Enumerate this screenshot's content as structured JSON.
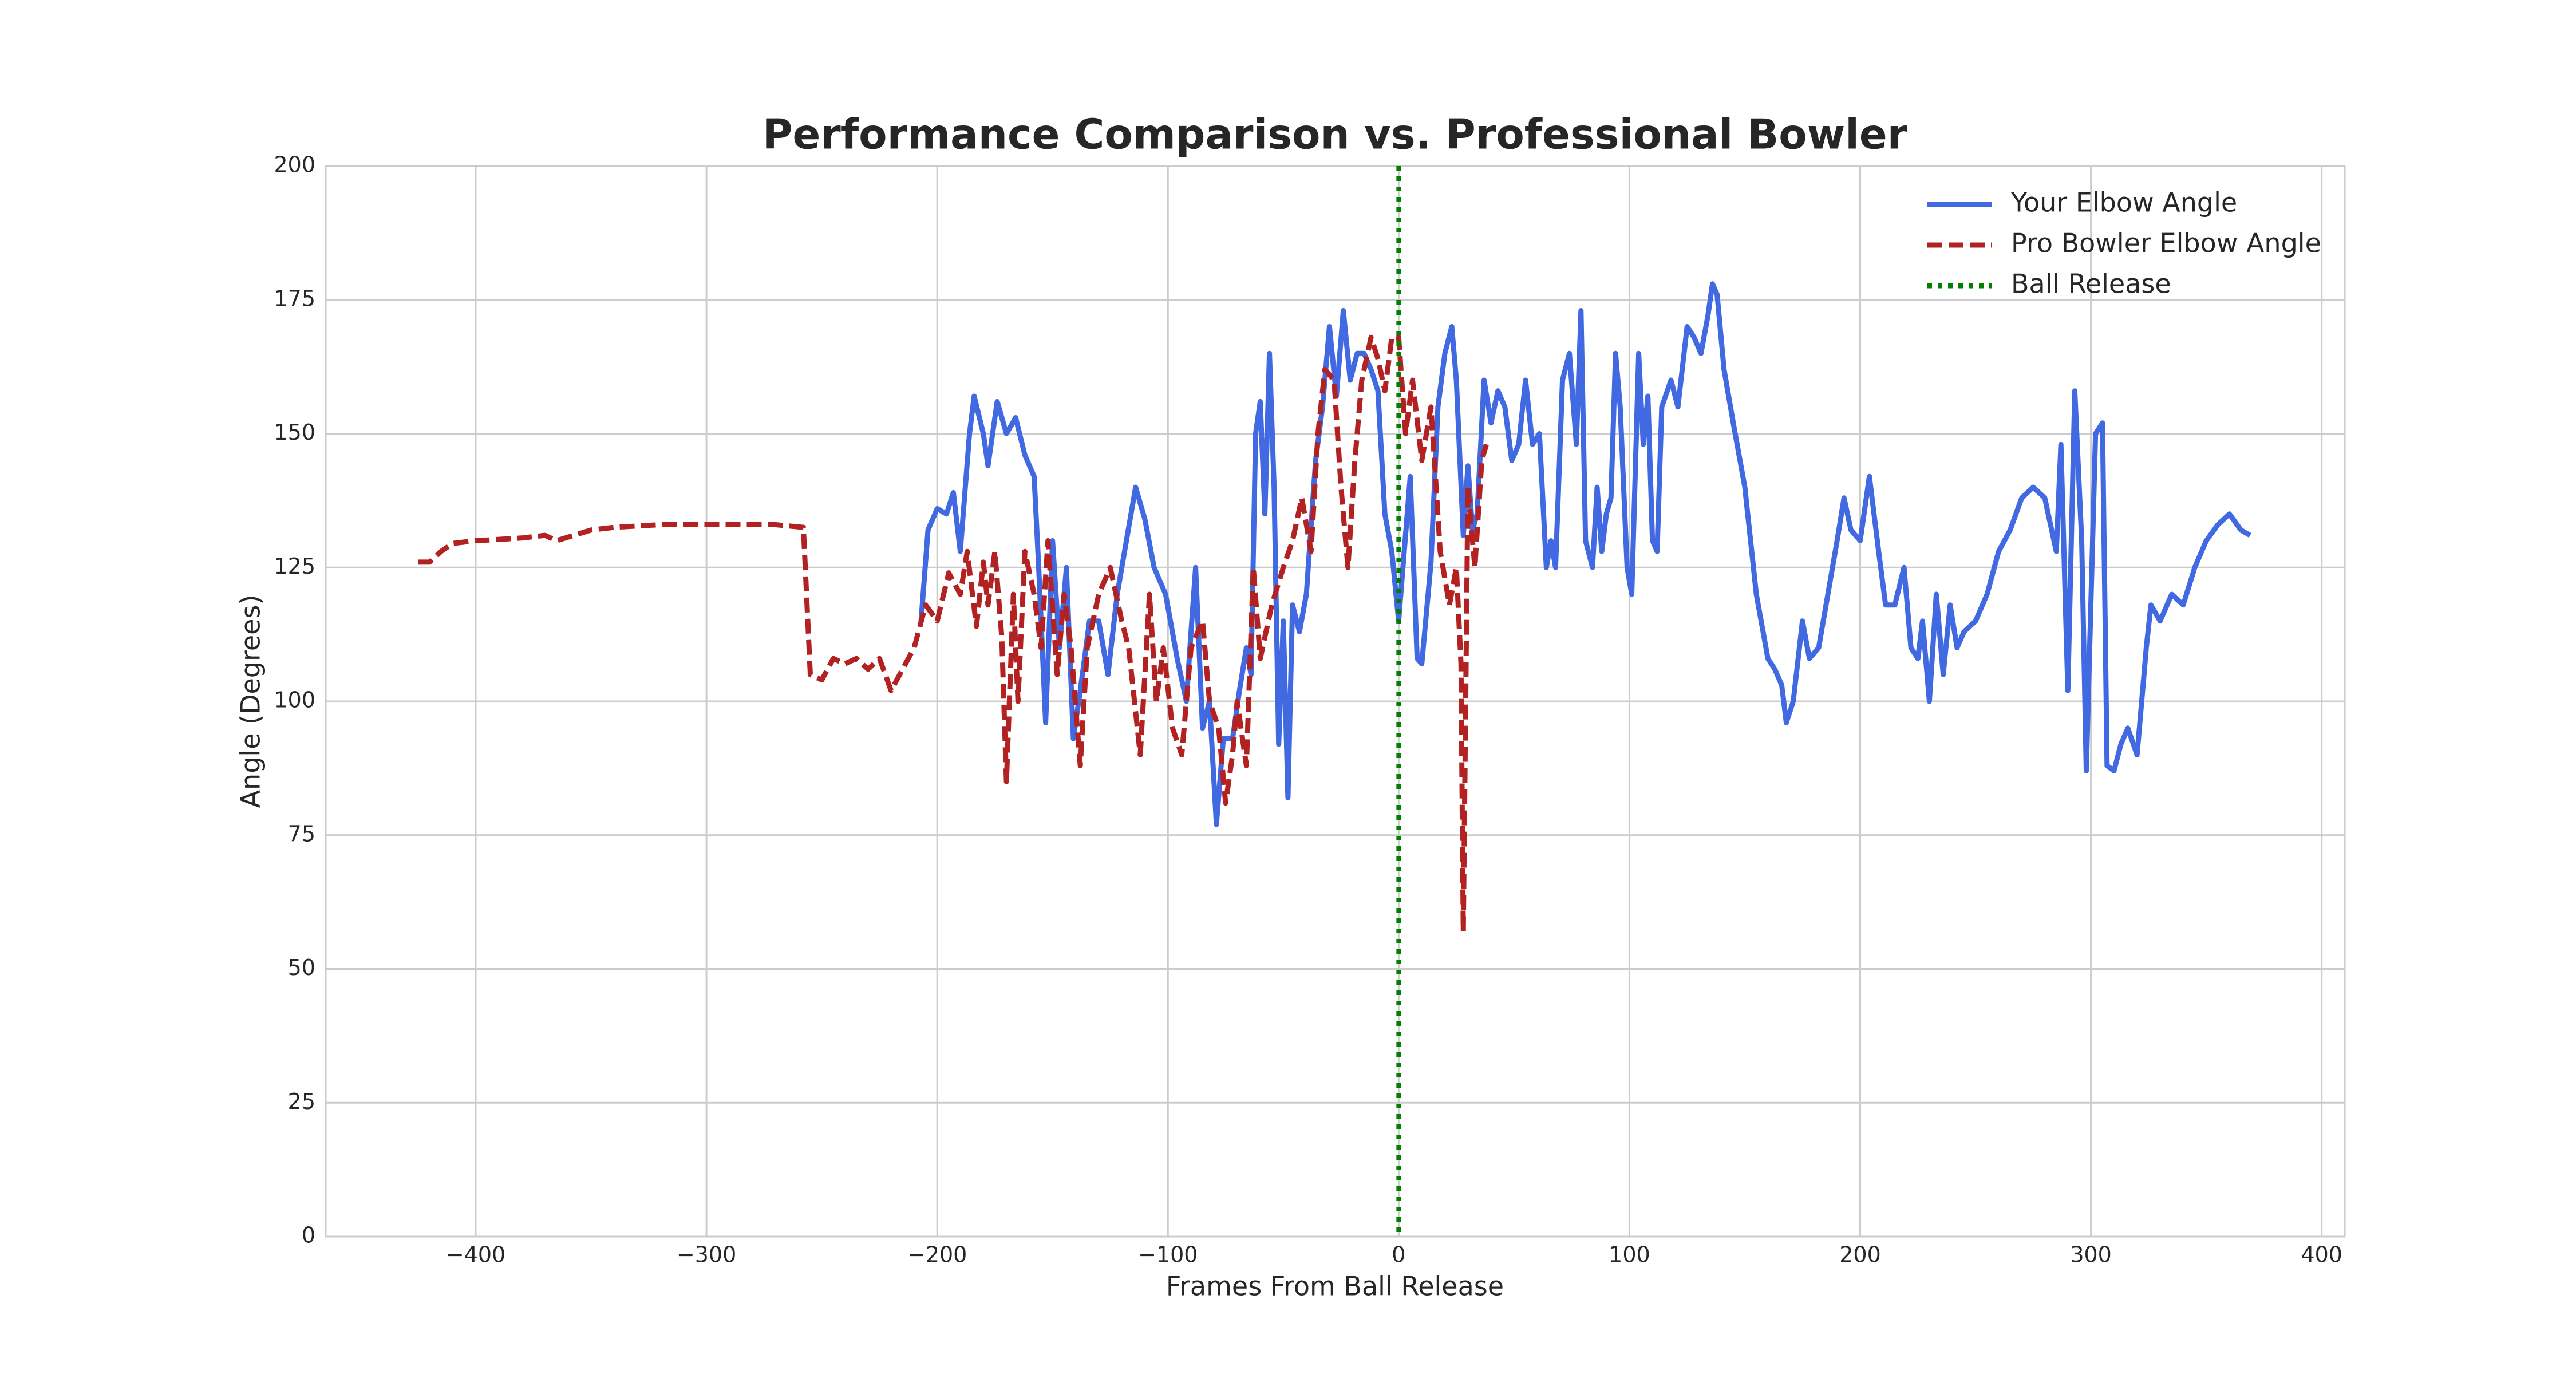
{
  "chart_data": {
    "type": "line",
    "title": "Performance Comparison vs. Professional Bowler",
    "x_label": "Frames From Ball Release",
    "y_label": "Angle (Degrees)",
    "xlim": [
      -465,
      410
    ],
    "ylim": [
      0,
      200
    ],
    "xticks": [
      {
        "value": -400,
        "label": "−400"
      },
      {
        "value": -300,
        "label": "−300"
      },
      {
        "value": -200,
        "label": "−200"
      },
      {
        "value": -100,
        "label": "−100"
      },
      0,
      100,
      200,
      300,
      400
    ],
    "yticks": [
      0,
      25,
      50,
      75,
      100,
      125,
      150,
      175,
      200
    ],
    "grid": true,
    "legend": "upper right",
    "series": [
      {
        "name": "Your Elbow Angle",
        "color": "#4169e1",
        "dash": "solid",
        "x": [
          -207,
          -204,
          -200,
          -196,
          -193,
          -190,
          -186,
          -184,
          -180,
          -178,
          -174,
          -170,
          -166,
          -162,
          -158,
          -156,
          -153,
          -150,
          -147,
          -144,
          -141,
          -138,
          -134,
          -130,
          -126,
          -122,
          -118,
          -114,
          -110,
          -106,
          -101,
          -96,
          -92,
          -90,
          -88,
          -85,
          -82,
          -79,
          -76,
          -72,
          -69,
          -66,
          -64,
          -62,
          -60,
          -58,
          -56,
          -54,
          -52,
          -50,
          -48,
          -46,
          -43,
          -40,
          -36,
          -33,
          -30,
          -27,
          -24,
          -21,
          -18,
          -15,
          -12,
          -9,
          -6,
          -3,
          0,
          5,
          8,
          10,
          14,
          17,
          20,
          23,
          25,
          28,
          30,
          32,
          34,
          37,
          40,
          43,
          46,
          49,
          52,
          55,
          58,
          61,
          64,
          66,
          68,
          71,
          74,
          77,
          79,
          81,
          84,
          86,
          88,
          90,
          92,
          94,
          96,
          99,
          101,
          104,
          106,
          108,
          110,
          112,
          114,
          118,
          121,
          125,
          128,
          131,
          134,
          136,
          138,
          141,
          145,
          150,
          155,
          160,
          163,
          166,
          168,
          171,
          175,
          178,
          182,
          186,
          190,
          193,
          196,
          200,
          204,
          208,
          211,
          215,
          219,
          222,
          225,
          227,
          230,
          233,
          236,
          239,
          242,
          245,
          250,
          255,
          260,
          265,
          270,
          275,
          280,
          285,
          287,
          290,
          293,
          296,
          298,
          302,
          305,
          307,
          310,
          313,
          316,
          320,
          322,
          324,
          326,
          330,
          335,
          340,
          345,
          350,
          355,
          360,
          365,
          369
        ],
        "values": [
          115,
          132,
          136,
          135,
          139,
          128,
          150,
          157,
          150,
          144,
          156,
          150,
          153,
          146,
          142,
          125,
          96,
          130,
          110,
          125,
          93,
          102,
          115,
          115,
          105,
          120,
          130,
          140,
          134,
          125,
          120,
          108,
          100,
          113,
          125,
          95,
          100,
          77,
          93,
          93,
          102,
          110,
          105,
          150,
          156,
          135,
          165,
          140,
          92,
          115,
          82,
          118,
          113,
          120,
          145,
          155,
          170,
          157,
          173,
          160,
          165,
          165,
          162,
          158,
          135,
          128,
          115,
          142,
          108,
          107,
          126,
          155,
          165,
          170,
          160,
          131,
          144,
          132,
          135,
          160,
          152,
          158,
          155,
          145,
          148,
          160,
          148,
          150,
          125,
          130,
          125,
          160,
          165,
          148,
          173,
          130,
          125,
          140,
          128,
          135,
          138,
          165,
          155,
          125,
          120,
          165,
          148,
          157,
          130,
          128,
          155,
          160,
          155,
          170,
          168,
          165,
          172,
          178,
          176,
          162,
          152,
          140,
          120,
          108,
          106,
          103,
          96,
          100,
          115,
          108,
          110,
          120,
          130,
          138,
          132,
          130,
          142,
          128,
          118,
          118,
          125,
          110,
          108,
          115,
          100,
          120,
          105,
          118,
          110,
          113,
          115,
          120,
          128,
          132,
          138,
          140,
          138,
          128,
          148,
          102,
          158,
          130,
          87,
          150,
          152,
          88,
          87,
          92,
          95,
          90,
          100,
          110,
          118,
          115,
          120,
          118,
          125,
          130,
          133,
          135,
          132,
          131
        ]
      },
      {
        "name": "Pro Bowler Elbow Angle",
        "color": "#b22222",
        "dash": "dashed",
        "x": [
          -425,
          -420,
          -415,
          -410,
          -400,
          -380,
          -370,
          -365,
          -350,
          -340,
          -320,
          -310,
          -290,
          -270,
          -258,
          -255,
          -250,
          -245,
          -240,
          -235,
          -230,
          -225,
          -220,
          -215,
          -210,
          -205,
          -200,
          -195,
          -190,
          -187,
          -183,
          -180,
          -178,
          -175,
          -172,
          -170,
          -167,
          -165,
          -162,
          -158,
          -155,
          -152,
          -148,
          -145,
          -142,
          -138,
          -135,
          -130,
          -125,
          -120,
          -117,
          -112,
          -108,
          -105,
          -102,
          -98,
          -94,
          -90,
          -85,
          -82,
          -78,
          -75,
          -72,
          -70,
          -66,
          -63,
          -60,
          -55,
          -50,
          -46,
          -42,
          -38,
          -35,
          -32,
          -28,
          -25,
          -22,
          -19,
          -16,
          -12,
          -9,
          -6,
          -3,
          0,
          3,
          6,
          10,
          14,
          18,
          22,
          25,
          27,
          28,
          30,
          33,
          36,
          38
        ],
        "values": [
          126,
          126,
          128,
          129.5,
          130,
          130.5,
          131,
          130,
          132,
          132.5,
          133,
          133,
          133,
          133,
          132.5,
          105,
          104,
          108,
          107,
          108,
          106,
          108,
          102,
          106,
          110,
          118,
          115,
          124,
          120,
          128,
          114,
          126,
          118,
          128,
          112,
          85,
          120,
          100,
          128,
          120,
          110,
          130,
          105,
          120,
          110,
          88,
          110,
          120,
          125,
          115,
          110,
          90,
          120,
          100,
          110,
          95,
          90,
          110,
          115,
          100,
          95,
          81,
          90,
          100,
          88,
          125,
          108,
          118,
          125,
          130,
          138,
          128,
          150,
          162,
          160,
          140,
          125,
          145,
          160,
          168,
          164,
          158,
          168,
          168,
          150,
          160,
          145,
          155,
          128,
          118,
          125,
          107,
          57,
          140,
          125,
          145,
          148
        ]
      }
    ],
    "vlines": [
      {
        "name": "Ball Release",
        "color": "#008000",
        "x": 0
      }
    ]
  }
}
